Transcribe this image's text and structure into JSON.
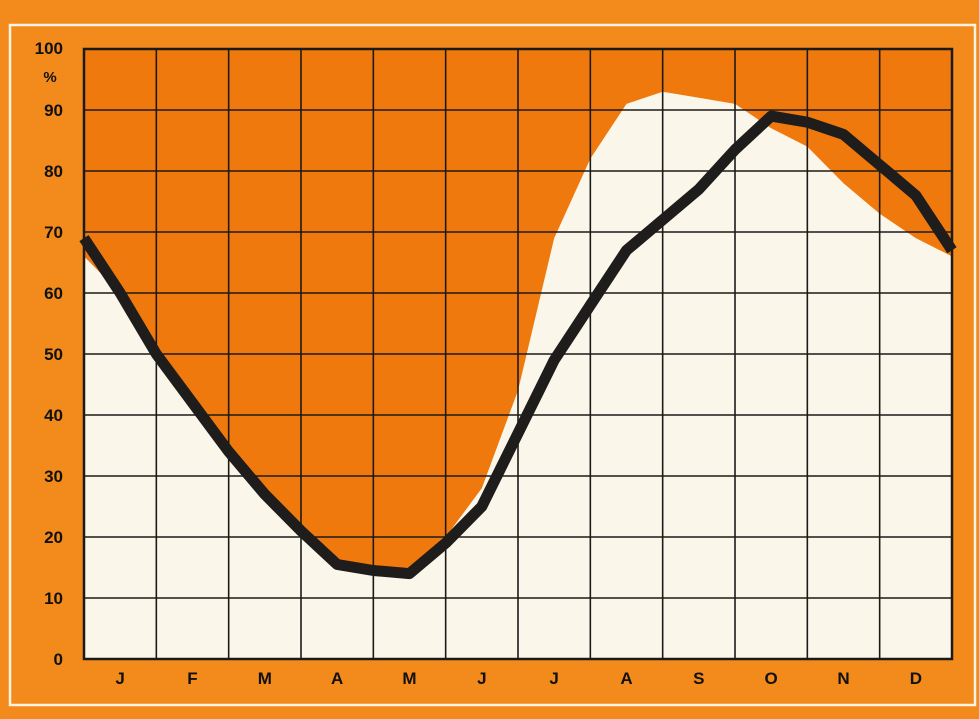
{
  "colors": {
    "background": "#f28a1c",
    "plot_fill": "#f0790e",
    "area_fill": "#fbf6ea",
    "grid": "#1c1a17",
    "line": "#1e1d1b",
    "frame": "#fdf3e2"
  },
  "chart_data": {
    "type": "area",
    "title": "",
    "xlabel": "",
    "ylabel": "%",
    "ylim": [
      0,
      100
    ],
    "y_ticks": [
      "0",
      "10",
      "20",
      "30",
      "40",
      "50",
      "60",
      "70",
      "80",
      "90",
      "100"
    ],
    "categories": [
      "J",
      "F",
      "M",
      "A",
      "M",
      "J",
      "J",
      "A",
      "S",
      "O",
      "N",
      "D"
    ],
    "grid": true,
    "legend": "none",
    "series": [
      {
        "type": "area",
        "x": [
          0,
          0.5,
          1,
          1.5,
          2,
          2.5,
          3,
          3.5,
          4,
          4.5,
          5,
          5.5,
          6,
          6.5,
          7,
          7.5,
          8,
          8.5,
          9,
          9.5,
          10,
          10.5,
          11,
          11.5,
          12
        ],
        "values": [
          66,
          60,
          51,
          42,
          34,
          26,
          20,
          16,
          14,
          15,
          20,
          28,
          44,
          69,
          82,
          91,
          93,
          92,
          91,
          87,
          84,
          78,
          73,
          69,
          66
        ]
      },
      {
        "type": "line",
        "x": [
          0,
          0.5,
          1,
          1.5,
          2,
          2.5,
          3,
          3.5,
          4,
          4.5,
          5,
          5.5,
          6,
          6.5,
          7,
          7.5,
          8,
          8.5,
          9,
          9.5,
          10,
          10.5,
          11,
          11.5,
          12
        ],
        "values": [
          69,
          60,
          50,
          42,
          34,
          27,
          21,
          15.5,
          14.5,
          14,
          19,
          25,
          37,
          49,
          58,
          67,
          72,
          77,
          83.5,
          89,
          88,
          86,
          81,
          76,
          67
        ]
      }
    ]
  }
}
